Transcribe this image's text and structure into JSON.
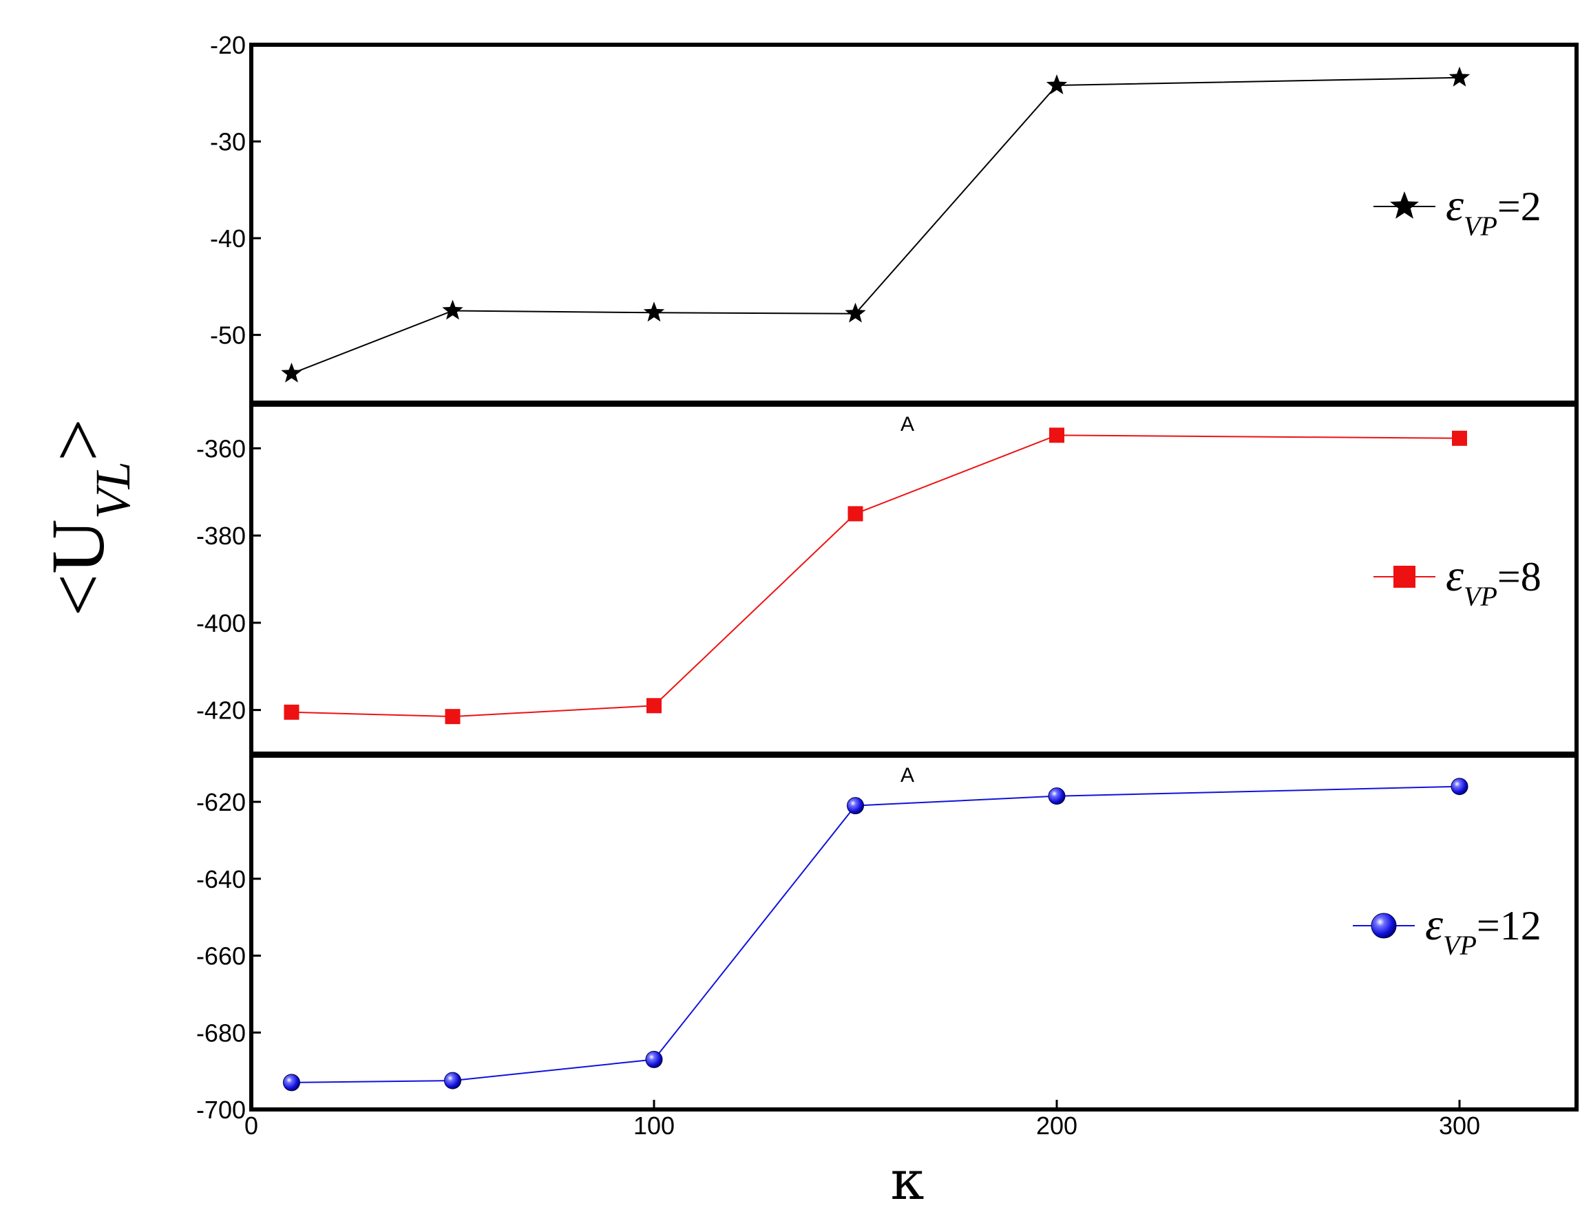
{
  "chart_data": {
    "type": "line",
    "y_axis_label": {
      "main": "<U",
      "sub": "VL",
      "close": ">"
    },
    "x_axis_label": "κ",
    "x_ticks": [
      "0",
      "100",
      "200",
      "300"
    ],
    "panels": [
      {
        "series_name": "ε_VP=2",
        "legend": {
          "eps": "ε",
          "sub": "VP",
          "value": "=2"
        },
        "color": "#000000",
        "marker": "star",
        "ylim": [
          -57,
          -20
        ],
        "y_ticks": [
          "-20",
          "-30",
          "-40",
          "-50"
        ],
        "y_tick_values": [
          -20,
          -30,
          -40,
          -50
        ],
        "mark": "",
        "points": [
          {
            "x": 10,
            "y": -54.0
          },
          {
            "x": 50,
            "y": -47.5
          },
          {
            "x": 100,
            "y": -47.7
          },
          {
            "x": 150,
            "y": -47.8
          },
          {
            "x": 200,
            "y": -24.2
          },
          {
            "x": 300,
            "y": -23.4
          }
        ]
      },
      {
        "series_name": "ε_VP=8",
        "legend": {
          "eps": "ε",
          "sub": "VP",
          "value": "=8"
        },
        "color": "#ee1111",
        "marker": "square",
        "ylim": [
          -430,
          -350
        ],
        "y_ticks": [
          "-360",
          "-380",
          "-400",
          "-420"
        ],
        "y_tick_values": [
          -360,
          -380,
          -400,
          -420
        ],
        "mark": "A",
        "points": [
          {
            "x": 10,
            "y": -420.5
          },
          {
            "x": 50,
            "y": -421.5
          },
          {
            "x": 100,
            "y": -419.0
          },
          {
            "x": 150,
            "y": -375.0
          },
          {
            "x": 200,
            "y": -357.0
          },
          {
            "x": 300,
            "y": -357.7
          }
        ]
      },
      {
        "series_name": "ε_VP=12",
        "legend": {
          "eps": "ε",
          "sub": "VP",
          "value": "=12"
        },
        "color": "#1111dd",
        "marker": "sphere",
        "ylim": [
          -700,
          -608
        ],
        "y_ticks": [
          "-620",
          "-640",
          "-660",
          "-680",
          "-700"
        ],
        "y_tick_values": [
          -620,
          -640,
          -660,
          -680,
          -700
        ],
        "mark": "A",
        "points": [
          {
            "x": 10,
            "y": -693.0
          },
          {
            "x": 50,
            "y": -692.5
          },
          {
            "x": 100,
            "y": -687.0
          },
          {
            "x": 150,
            "y": -621.0
          },
          {
            "x": 200,
            "y": -618.5
          },
          {
            "x": 300,
            "y": -616.0
          }
        ]
      }
    ]
  }
}
